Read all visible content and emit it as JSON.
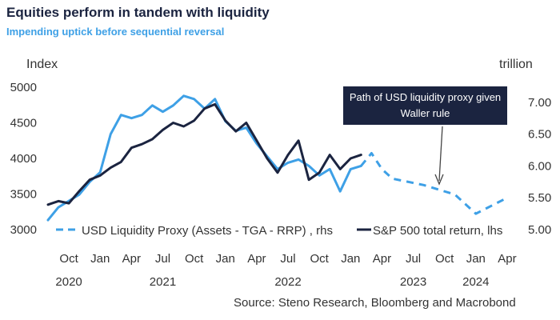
{
  "title": "Equities perform in tandem with liquidity",
  "subtitle": "Impending uptick before sequential reversal",
  "source": "Source: Steno Research, Bloomberg and Macrobond",
  "colors": {
    "liquidity": "#3ea0e6",
    "sp500": "#1b2440",
    "annotation_bg": "#1b2440"
  },
  "chart_data": {
    "type": "line",
    "title": "Equities perform in tandem with liquidity",
    "subtitle": "Impending uptick before sequential reversal",
    "y_left_label": "Index",
    "y_right_label": "trillion",
    "y_left_lim": [
      3000,
      5000
    ],
    "y_right_lim": [
      5.0,
      7.5
    ],
    "y_left_ticks": [
      "3000",
      "3500",
      "4000",
      "4500",
      "5000"
    ],
    "y_right_ticks": [
      "5.00",
      "5.50",
      "6.00",
      "6.50",
      "7.00"
    ],
    "x_month_ticks": [
      "Oct",
      "Jan",
      "Apr",
      "Jul",
      "Oct",
      "Jan",
      "Apr",
      "Jul",
      "Oct",
      "Jan",
      "Apr",
      "Jul",
      "Oct",
      "Jan",
      "Apr"
    ],
    "x_year_ticks": [
      "2020",
      "2021",
      "2022",
      "2023",
      "2024"
    ],
    "x_range": [
      "2020-08",
      "2024-05"
    ],
    "legend_position": "bottom-left",
    "annotation": "Path of USD liquidity proxy given Waller rule",
    "series": [
      {
        "name": "S&P 500 total return, lhs",
        "axis": "left",
        "style": "solid",
        "points": [
          [
            "2020-08",
            3350
          ],
          [
            "2020-09",
            3400
          ],
          [
            "2020-10",
            3370
          ],
          [
            "2020-11",
            3540
          ],
          [
            "2020-12",
            3700
          ],
          [
            "2021-01",
            3760
          ],
          [
            "2021-02",
            3870
          ],
          [
            "2021-03",
            3950
          ],
          [
            "2021-04",
            4150
          ],
          [
            "2021-05",
            4200
          ],
          [
            "2021-06",
            4270
          ],
          [
            "2021-07",
            4400
          ],
          [
            "2021-08",
            4500
          ],
          [
            "2021-09",
            4450
          ],
          [
            "2021-10",
            4530
          ],
          [
            "2021-11",
            4700
          ],
          [
            "2021-12",
            4760
          ],
          [
            "2022-01",
            4530
          ],
          [
            "2022-02",
            4380
          ],
          [
            "2022-03",
            4500
          ],
          [
            "2022-04",
            4250
          ],
          [
            "2022-05",
            4000
          ],
          [
            "2022-06",
            3800
          ],
          [
            "2022-07",
            4050
          ],
          [
            "2022-08",
            4250
          ],
          [
            "2022-09",
            3700
          ],
          [
            "2022-10",
            3800
          ],
          [
            "2022-11",
            4050
          ],
          [
            "2022-12",
            3850
          ],
          [
            "2023-01",
            4000
          ],
          [
            "2023-02",
            4050
          ]
        ]
      },
      {
        "name": "USD Liquidity Proxy (Assets - TGA - RRP) , rhs",
        "axis": "right",
        "style": "solid",
        "points": [
          [
            "2020-08",
            5.15
          ],
          [
            "2020-09",
            5.35
          ],
          [
            "2020-10",
            5.45
          ],
          [
            "2020-11",
            5.55
          ],
          [
            "2020-12",
            5.75
          ],
          [
            "2021-01",
            5.9
          ],
          [
            "2021-02",
            6.5
          ],
          [
            "2021-03",
            6.8
          ],
          [
            "2021-04",
            6.75
          ],
          [
            "2021-05",
            6.8
          ],
          [
            "2021-06",
            6.95
          ],
          [
            "2021-07",
            6.85
          ],
          [
            "2021-08",
            6.95
          ],
          [
            "2021-09",
            7.1
          ],
          [
            "2021-10",
            7.05
          ],
          [
            "2021-11",
            6.9
          ],
          [
            "2021-12",
            7.05
          ],
          [
            "2022-01",
            6.7
          ],
          [
            "2022-02",
            6.55
          ],
          [
            "2022-03",
            6.6
          ],
          [
            "2022-04",
            6.35
          ],
          [
            "2022-05",
            6.15
          ],
          [
            "2022-06",
            5.95
          ],
          [
            "2022-07",
            6.05
          ],
          [
            "2022-08",
            6.1
          ],
          [
            "2022-09",
            6.0
          ],
          [
            "2022-10",
            5.85
          ],
          [
            "2022-11",
            5.95
          ],
          [
            "2022-12",
            5.6
          ],
          [
            "2023-01",
            5.95
          ],
          [
            "2023-02",
            6.0
          ]
        ]
      },
      {
        "name": "Path of USD liquidity proxy given Waller rule",
        "axis": "right",
        "style": "dashed",
        "points": [
          [
            "2023-02",
            6.0
          ],
          [
            "2023-03",
            6.2
          ],
          [
            "2023-04",
            5.95
          ],
          [
            "2023-05",
            5.8
          ],
          [
            "2023-08",
            5.7
          ],
          [
            "2023-11",
            5.55
          ],
          [
            "2024-01",
            5.25
          ],
          [
            "2024-04",
            5.5
          ]
        ]
      }
    ]
  }
}
